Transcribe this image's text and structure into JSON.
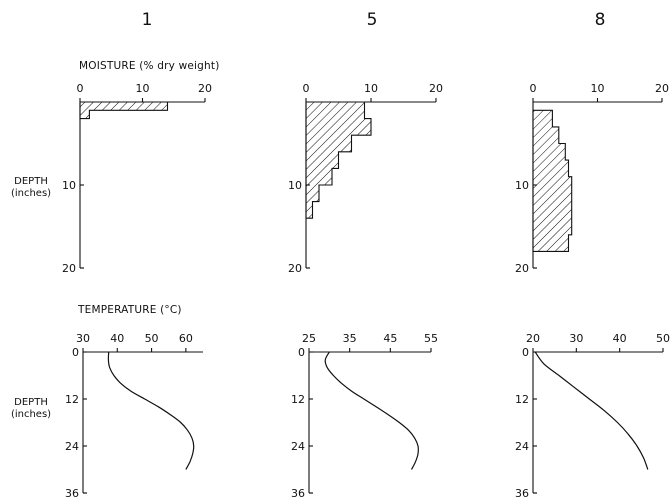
{
  "figure": {
    "moisture_label": "MOISTURE (% dry weight)",
    "temperature_label": "TEMPERATURE (°C)",
    "depth_label_line1": "DEPTH",
    "depth_label_line2": "(inches)"
  },
  "chart_data": [
    {
      "panel": "moisture-1",
      "type": "area",
      "column_label": "1",
      "xlim": [
        0,
        20
      ],
      "xticks": [
        0,
        10,
        20
      ],
      "ylim": [
        0,
        20
      ],
      "yticks": [
        10,
        20
      ],
      "y_inverted": true,
      "profile": [
        {
          "depth_top": 0,
          "depth_bottom": 1,
          "moisture": 14
        },
        {
          "depth_top": 1,
          "depth_bottom": 2,
          "moisture": 1.5
        }
      ]
    },
    {
      "panel": "moisture-5",
      "type": "area",
      "column_label": "5",
      "xlim": [
        0,
        20
      ],
      "xticks": [
        0,
        10,
        20
      ],
      "ylim": [
        0,
        20
      ],
      "yticks": [
        10,
        20
      ],
      "y_inverted": true,
      "profile": [
        {
          "depth_top": 0,
          "depth_bottom": 2,
          "moisture": 9
        },
        {
          "depth_top": 2,
          "depth_bottom": 4,
          "moisture": 10
        },
        {
          "depth_top": 4,
          "depth_bottom": 6,
          "moisture": 7
        },
        {
          "depth_top": 6,
          "depth_bottom": 8,
          "moisture": 5
        },
        {
          "depth_top": 8,
          "depth_bottom": 10,
          "moisture": 4
        },
        {
          "depth_top": 10,
          "depth_bottom": 12,
          "moisture": 2
        },
        {
          "depth_top": 12,
          "depth_bottom": 14,
          "moisture": 1
        }
      ]
    },
    {
      "panel": "moisture-8",
      "type": "area",
      "column_label": "8",
      "xlim": [
        0,
        20
      ],
      "xticks": [
        0,
        10,
        20
      ],
      "ylim": [
        0,
        20
      ],
      "yticks": [
        10,
        20
      ],
      "y_inverted": true,
      "profile": [
        {
          "depth_top": 1,
          "depth_bottom": 3,
          "moisture": 3
        },
        {
          "depth_top": 3,
          "depth_bottom": 5,
          "moisture": 4
        },
        {
          "depth_top": 5,
          "depth_bottom": 7,
          "moisture": 5
        },
        {
          "depth_top": 7,
          "depth_bottom": 9,
          "moisture": 5.5
        },
        {
          "depth_top": 9,
          "depth_bottom": 16,
          "moisture": 6
        },
        {
          "depth_top": 16,
          "depth_bottom": 18,
          "moisture": 5.5
        }
      ]
    },
    {
      "panel": "temperature-1",
      "type": "line",
      "column_label": "1",
      "xlim": [
        30,
        65
      ],
      "xticks": [
        30,
        40,
        50,
        60
      ],
      "ylim": [
        0,
        36
      ],
      "yticks": [
        0,
        12,
        24,
        36
      ],
      "y_inverted": true,
      "x": [
        37.5,
        37.4,
        37.8,
        39,
        41,
        44,
        48,
        52,
        55.5,
        58.5,
        60.5,
        61.8,
        62.3,
        62,
        61.2,
        60
      ],
      "y": [
        0,
        2,
        4,
        6,
        8,
        10,
        12,
        14,
        16,
        18,
        20,
        22,
        24,
        26,
        28,
        30
      ]
    },
    {
      "panel": "temperature-5",
      "type": "line",
      "column_label": "5",
      "xlim": [
        25,
        55
      ],
      "xticks": [
        25,
        35,
        45,
        55
      ],
      "ylim": [
        0,
        36
      ],
      "yticks": [
        0,
        12,
        24,
        36
      ],
      "y_inverted": true,
      "x": [
        30,
        29,
        29.5,
        31,
        33,
        35.5,
        38.5,
        41.5,
        44.5,
        47.2,
        49.5,
        51,
        51.8,
        51.8,
        51.2,
        50.2
      ],
      "y": [
        0,
        2,
        4,
        6,
        8,
        10,
        12,
        14,
        16,
        18,
        20,
        22,
        24,
        26,
        28,
        30
      ]
    },
    {
      "panel": "temperature-8",
      "type": "line",
      "column_label": "8",
      "xlim": [
        20,
        50
      ],
      "xticks": [
        20,
        30,
        40,
        50
      ],
      "ylim": [
        0,
        36
      ],
      "yticks": [
        0,
        12,
        24,
        36
      ],
      "y_inverted": true,
      "x": [
        20.5,
        22.5,
        26,
        29.5,
        33,
        36.5,
        39.5,
        42,
        44,
        45.5,
        46.5
      ],
      "y": [
        0,
        3,
        6,
        9,
        12,
        15,
        18,
        21,
        24,
        27,
        30
      ]
    }
  ]
}
